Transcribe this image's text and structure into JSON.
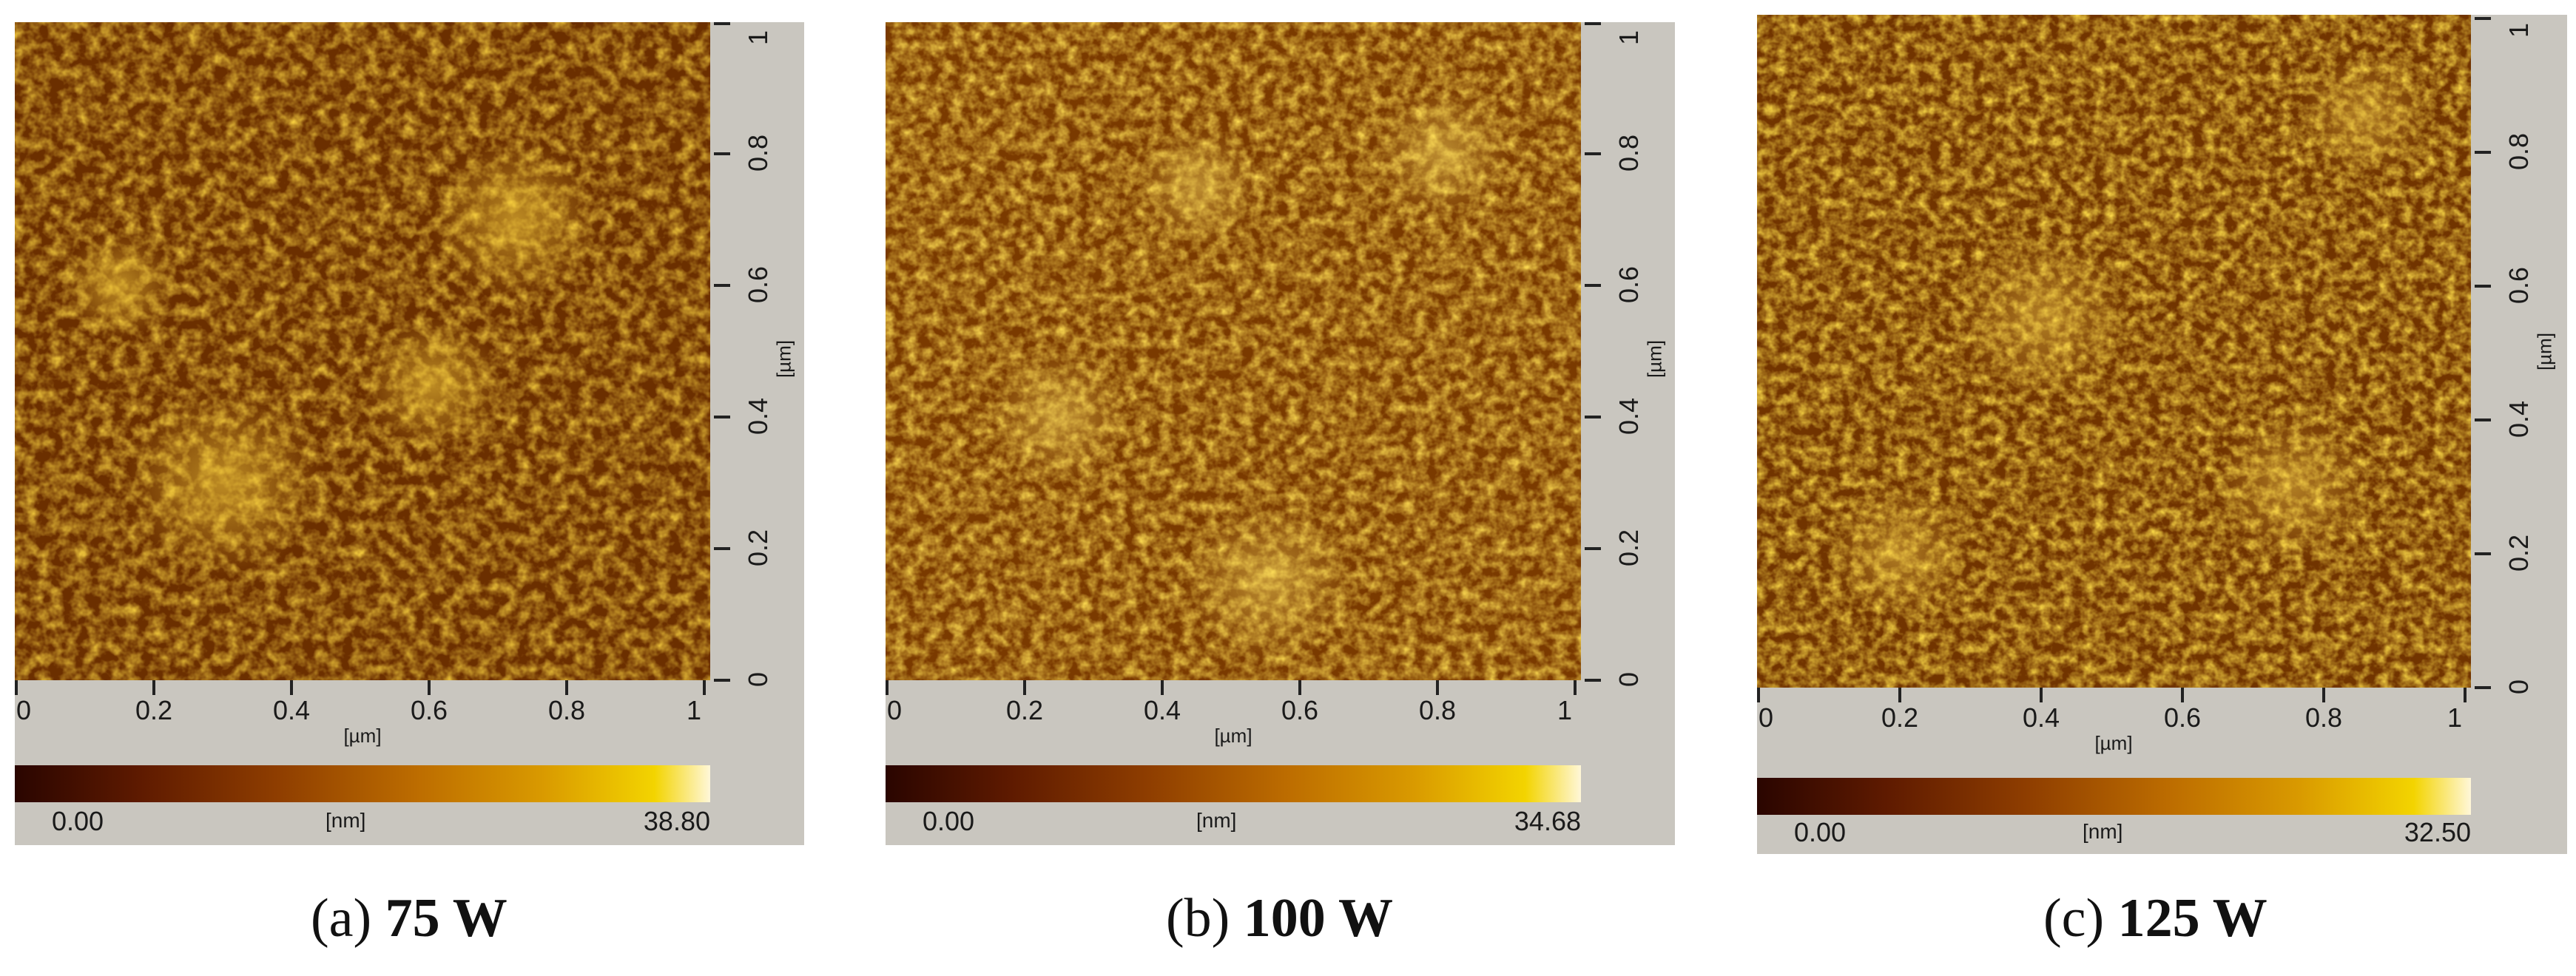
{
  "panels": [
    {
      "y_ticks": [
        "0",
        "0.2",
        "0.4",
        "0.6",
        "0.8",
        "1"
      ],
      "x_ticks": [
        "0",
        "0.2",
        "0.4",
        "0.6",
        "0.8",
        "1"
      ],
      "axis_unit": "[µm]",
      "scale_min": "0.00",
      "scale_unit": "[nm]",
      "scale_max": "38.80",
      "caption_letter": "(a)",
      "caption_text": "75 W"
    },
    {
      "y_ticks": [
        "0",
        "0.2",
        "0.4",
        "0.6",
        "0.8",
        "1"
      ],
      "x_ticks": [
        "0",
        "0.2",
        "0.4",
        "0.6",
        "0.8",
        "1"
      ],
      "axis_unit": "[µm]",
      "scale_min": "0.00",
      "scale_unit": "[nm]",
      "scale_max": "34.68",
      "caption_letter": "(b)",
      "caption_text": "100 W"
    },
    {
      "y_ticks": [
        "0",
        "0.2",
        "0.4",
        "0.6",
        "0.8",
        "1"
      ],
      "x_ticks": [
        "0",
        "0.2",
        "0.4",
        "0.6",
        "0.8",
        "1"
      ],
      "axis_unit": "[µm]",
      "scale_min": "0.00",
      "scale_unit": "[nm]",
      "scale_max": "32.50",
      "caption_letter": "(c)",
      "caption_text": "125 W"
    }
  ],
  "colors": {
    "surface_dark": "#4a1b00",
    "surface_mid": "#c07800",
    "surface_light": "#ffd640",
    "panel_bg": "#c9c6bf"
  }
}
